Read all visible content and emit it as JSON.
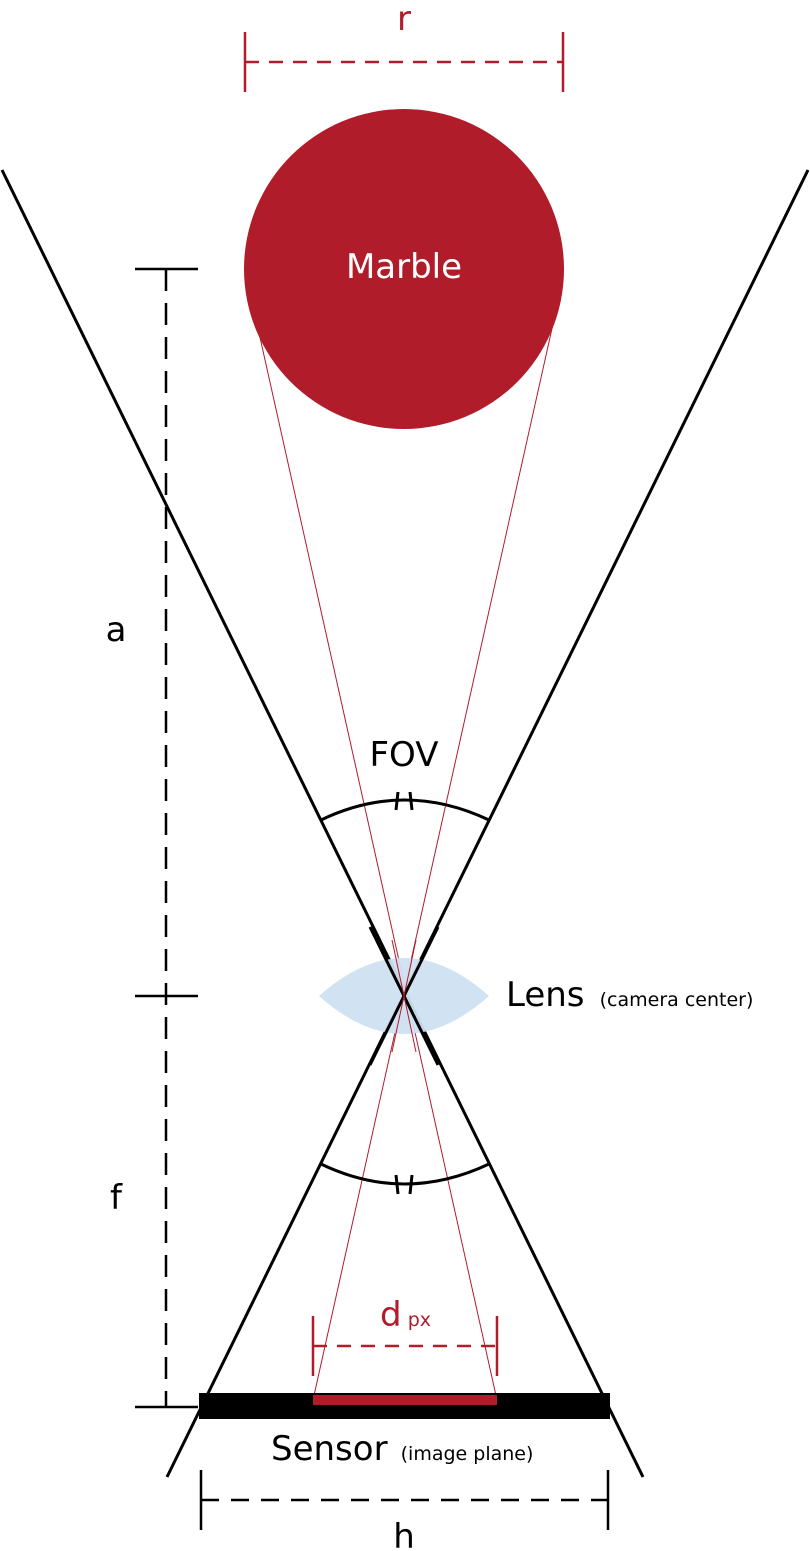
{
  "colors": {
    "marble": "#b01c2a",
    "accent_red": "#b01c2a",
    "lens": "#cfe2f2",
    "line": "#000000",
    "sensor": "#000000"
  },
  "labels": {
    "radius": "r",
    "marble": "Marble",
    "distance_a": "a",
    "fov": "FOV",
    "lens": "Lens",
    "lens_note": "(camera center)",
    "focal_f": "f",
    "dpx_main": "d",
    "dpx_sub": "px",
    "sensor": "Sensor",
    "sensor_note": "(image plane)",
    "sensor_h": "h"
  }
}
